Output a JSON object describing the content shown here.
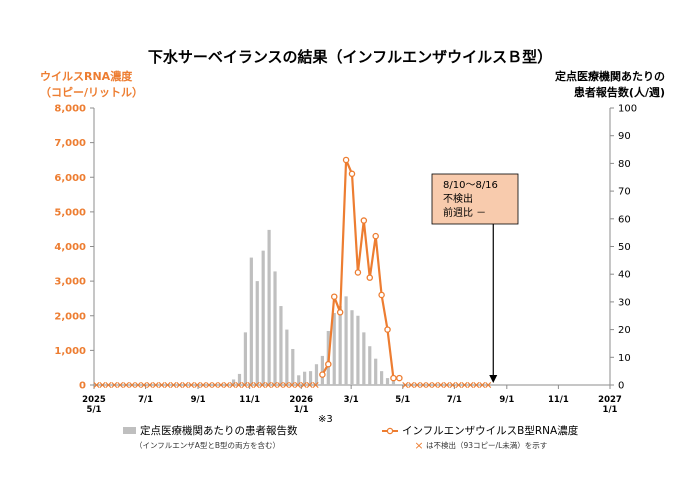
{
  "title": "下水サーベイランスの結果（インフルエンザウイルスＢ型）",
  "axis_left": {
    "label1": "ウイルスRNA濃度",
    "label2": "（コピー/リットル）"
  },
  "axis_right": {
    "label1": "定点医療機関あたりの",
    "label2": "患者報告数(人/週)"
  },
  "note_ref": "※3",
  "annotation": {
    "line1": "8/10～8/16",
    "line2": "不検出",
    "line3": "前週比 －"
  },
  "legend": {
    "bar_label": "定点医療機関あたりの患者報告数",
    "bar_sub": "（インフルエンザA型とB型の両方を含む）",
    "line_label": "インフルエンザウイルスB型RNA濃度",
    "marker_label": "は不検出（93コピー/L未満）を示す"
  },
  "colors": {
    "line": "#ED7D31",
    "bar": "#BFBFBF",
    "annotation_fill": "#F8CBAD",
    "marker": "#ED7D31"
  },
  "chart_data": {
    "type": "bar+line",
    "title": "下水サーベイランスの結果（インフルエンザウイルスＢ型）",
    "y_left": {
      "label": "ウイルスRNA濃度（コピー/リットル）",
      "min": 0,
      "max": 8000,
      "ticks": [
        0,
        1000,
        2000,
        3000,
        4000,
        5000,
        6000,
        7000,
        8000
      ],
      "tick_labels": [
        "0",
        "1,000",
        "2,000",
        "3,000",
        "4,000",
        "5,000",
        "6,000",
        "7,000",
        "8,000"
      ]
    },
    "y_right": {
      "label": "定点医療機関あたりの患者報告数(人/週)",
      "min": 0,
      "max": 100,
      "ticks": [
        0,
        10,
        20,
        30,
        40,
        50,
        60,
        70,
        80,
        90,
        100
      ]
    },
    "x": {
      "start": "2025-05-01",
      "end": "2027-01-01",
      "ticks": [
        {
          "date": "2025-05-01",
          "l1": "2025",
          "l2": "5/1"
        },
        {
          "date": "2025-07-01",
          "l1": "7/1",
          "l2": ""
        },
        {
          "date": "2025-09-01",
          "l1": "9/1",
          "l2": ""
        },
        {
          "date": "2025-11-01",
          "l1": "11/1",
          "l2": ""
        },
        {
          "date": "2026-01-01",
          "l1": "2026",
          "l2": "1/1"
        },
        {
          "date": "2026-03-01",
          "l1": "3/1",
          "l2": ""
        },
        {
          "date": "2026-05-01",
          "l1": "5/1",
          "l2": ""
        },
        {
          "date": "2026-07-01",
          "l1": "7/1",
          "l2": ""
        },
        {
          "date": "2026-09-01",
          "l1": "9/1",
          "l2": ""
        },
        {
          "date": "2026-11-01",
          "l1": "11/1",
          "l2": ""
        },
        {
          "date": "2027-01-01",
          "l1": "2027",
          "l2": "1/1"
        }
      ]
    },
    "series": [
      {
        "name": "定点医療機関あたりの患者報告数",
        "type": "bar",
        "axis": "right",
        "points": [
          [
            "2025-10-13",
            2
          ],
          [
            "2025-10-20",
            4
          ],
          [
            "2025-10-27",
            19
          ],
          [
            "2025-11-03",
            46
          ],
          [
            "2025-11-10",
            37.5
          ],
          [
            "2025-11-17",
            48.5
          ],
          [
            "2025-11-24",
            56
          ],
          [
            "2025-12-01",
            41
          ],
          [
            "2025-12-08",
            28.5
          ],
          [
            "2025-12-15",
            20
          ],
          [
            "2025-12-22",
            13
          ],
          [
            "2025-12-29",
            3.5
          ],
          [
            "2026-01-05",
            4.8
          ],
          [
            "2026-01-12",
            5
          ],
          [
            "2026-01-19",
            7.5
          ],
          [
            "2026-01-26",
            10.5
          ],
          [
            "2026-02-02",
            19.5
          ],
          [
            "2026-02-09",
            26
          ],
          [
            "2026-02-16",
            28.5
          ],
          [
            "2026-02-23",
            32
          ],
          [
            "2026-03-02",
            27
          ],
          [
            "2026-03-09",
            25
          ],
          [
            "2026-03-16",
            19
          ],
          [
            "2026-03-23",
            14
          ],
          [
            "2026-03-30",
            9.5
          ],
          [
            "2026-04-06",
            5
          ],
          [
            "2026-04-13",
            2.5
          ],
          [
            "2026-04-20",
            1.5
          ]
        ]
      },
      {
        "name": "インフルエンザウイルスB型RNA濃度",
        "type": "line",
        "axis": "left",
        "points": [
          [
            "2026-01-26",
            300
          ],
          [
            "2026-02-02",
            600
          ],
          [
            "2026-02-09",
            2550
          ],
          [
            "2026-02-16",
            2100
          ],
          [
            "2026-02-23",
            6500
          ],
          [
            "2026-03-02",
            6100
          ],
          [
            "2026-03-09",
            3250
          ],
          [
            "2026-03-16",
            4750
          ],
          [
            "2026-03-23",
            3100
          ],
          [
            "2026-03-30",
            4300
          ],
          [
            "2026-04-06",
            2600
          ],
          [
            "2026-04-13",
            1600
          ],
          [
            "2026-04-20",
            200
          ],
          [
            "2026-04-27",
            200
          ]
        ],
        "not_detected_ranges": [
          [
            "2025-05-04",
            "2026-01-19"
          ],
          [
            "2026-05-04",
            "2026-08-16"
          ]
        ],
        "not_detected_marker": "×"
      }
    ],
    "annotation_arrow_date": "2026-08-16"
  }
}
